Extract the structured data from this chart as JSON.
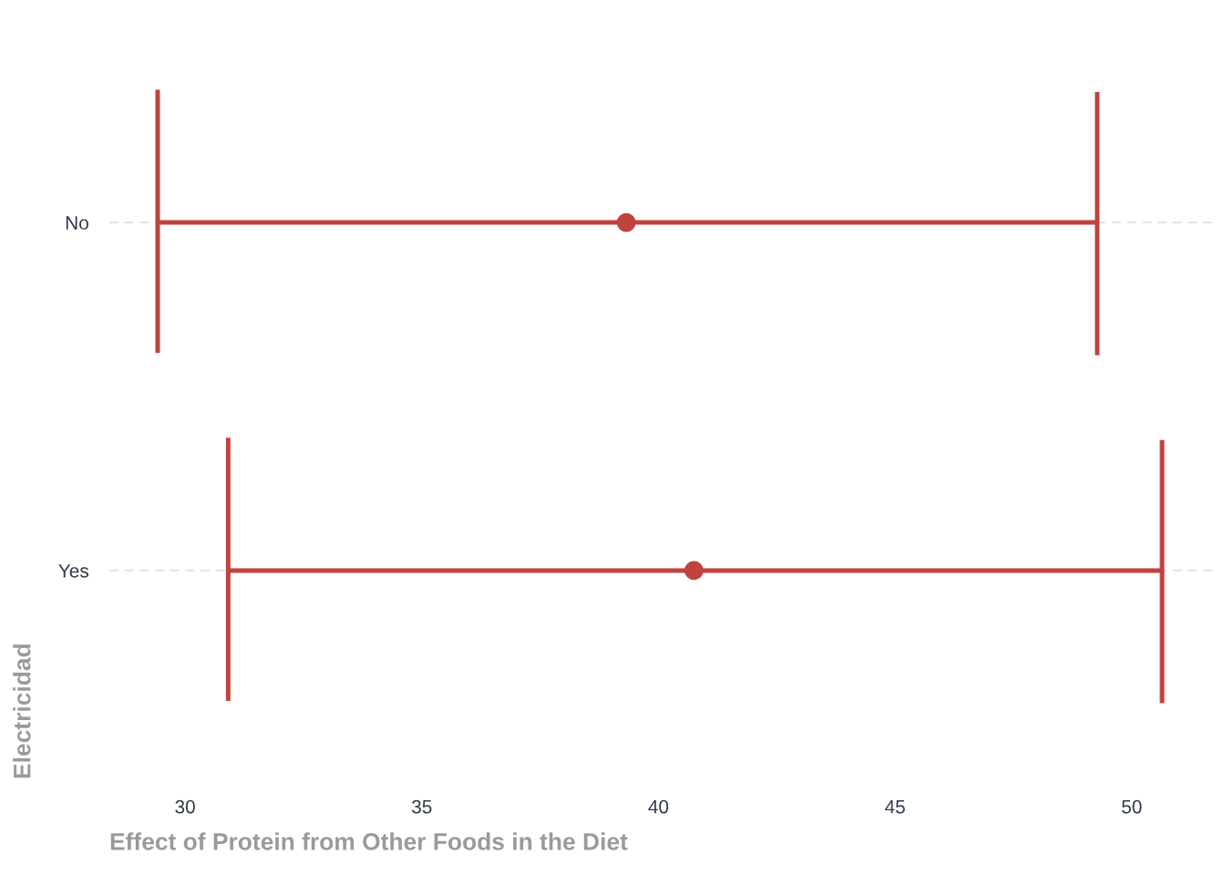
{
  "chart_data": {
    "type": "scatter",
    "orientation": "horizontal",
    "xlabel": "Effect of Protein from Other Foods in the Diet",
    "ylabel": "Electricidad",
    "categories": [
      "No",
      "Yes"
    ],
    "color": "#c0433f",
    "values": [
      39.32,
      40.75
    ],
    "errors": [
      [
        29.42,
        49.27
      ],
      [
        30.91,
        50.64
      ]
    ],
    "xlim": [
      28.4,
      51.7
    ],
    "xticks": [
      30,
      35,
      40,
      45,
      50
    ],
    "grid": "y",
    "marker": "circle"
  }
}
